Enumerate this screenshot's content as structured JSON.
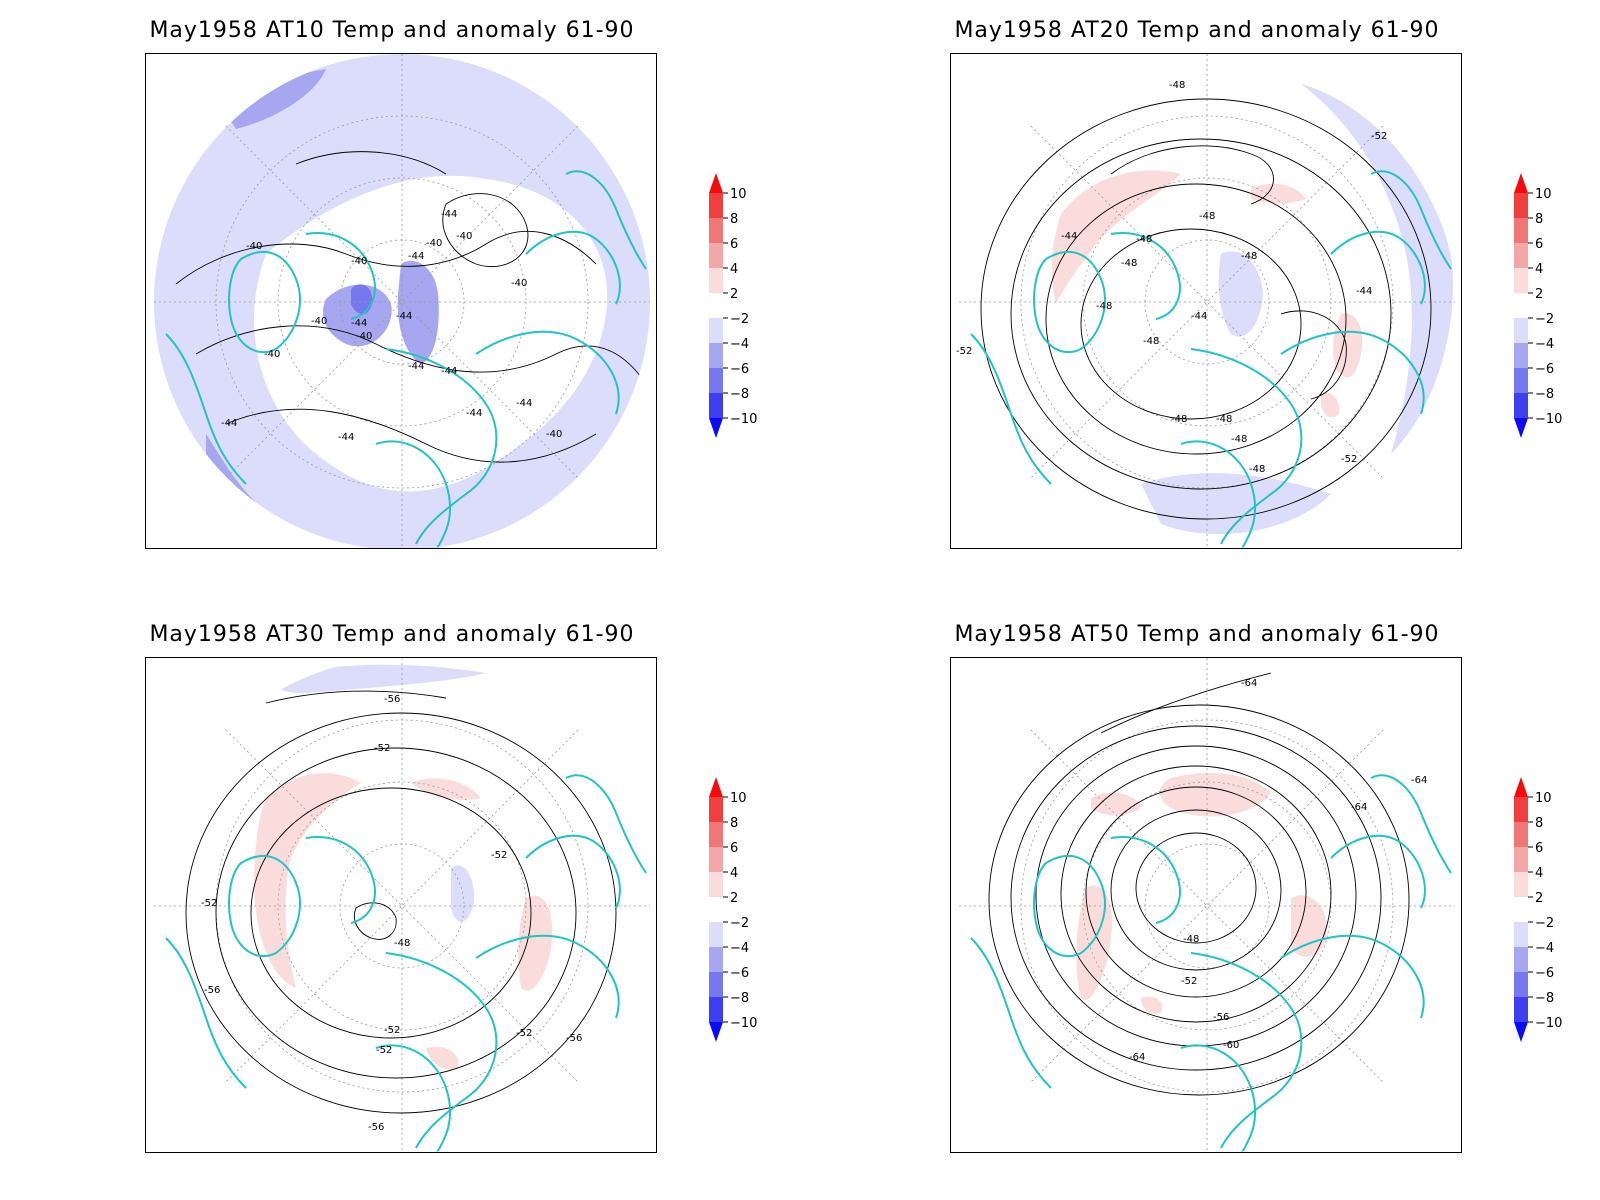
{
  "colors": {
    "coast": "#22c3c3",
    "contour": "#000000",
    "grid": "#9a9a9a",
    "neg_2_4": "#dcdcfb",
    "neg_4_6": "#a7a7f1",
    "neg_6_8": "#7777ee",
    "neg_8_10": "#3f3ff0",
    "neg_below": "#0b0bf5",
    "pos_2_4": "#fbdcdc",
    "pos_4_6": "#f4a7a7",
    "pos_6_8": "#ef7777",
    "pos_8_10": "#ef3f3f",
    "pos_above": "#f50b0b"
  },
  "colorbar": {
    "labels": [
      "10",
      "8",
      "6",
      "4",
      "2",
      "−2",
      "−4",
      "−6",
      "−8",
      "−10"
    ]
  },
  "panels": [
    {
      "id": "at10",
      "title": "May1958 AT10 Temp and anomaly 61-90",
      "contour_labels": [
        "-40",
        "-40",
        "-40",
        "-44",
        "-40",
        "-40",
        "-44",
        "-40",
        "-44",
        "-44",
        "-40",
        "-40",
        "-44",
        "-44",
        "-44",
        "-44",
        "-40",
        "-44",
        "-44"
      ]
    },
    {
      "id": "at20",
      "title": "May1958 AT20 Temp and anomaly 61-90",
      "contour_labels": [
        "-48",
        "-52",
        "-48",
        "-44",
        "-48",
        "-48",
        "-48",
        "-48",
        "-44",
        "-48",
        "-44",
        "-52",
        "-48",
        "-48",
        "-48",
        "-48",
        "-52"
      ]
    },
    {
      "id": "at30",
      "title": "May1958 AT30 Temp and anomaly 61-90",
      "contour_labels": [
        "-56",
        "-52",
        "-52",
        "-52",
        "-48",
        "-56",
        "-52",
        "-52",
        "-52",
        "-56",
        "-56"
      ]
    },
    {
      "id": "at50",
      "title": "May1958 AT50 Temp and anomaly 61-90",
      "contour_labels": [
        "-64",
        "-64",
        "-64",
        "-48",
        "-52",
        "-56",
        "-60",
        "-64"
      ]
    }
  ]
}
